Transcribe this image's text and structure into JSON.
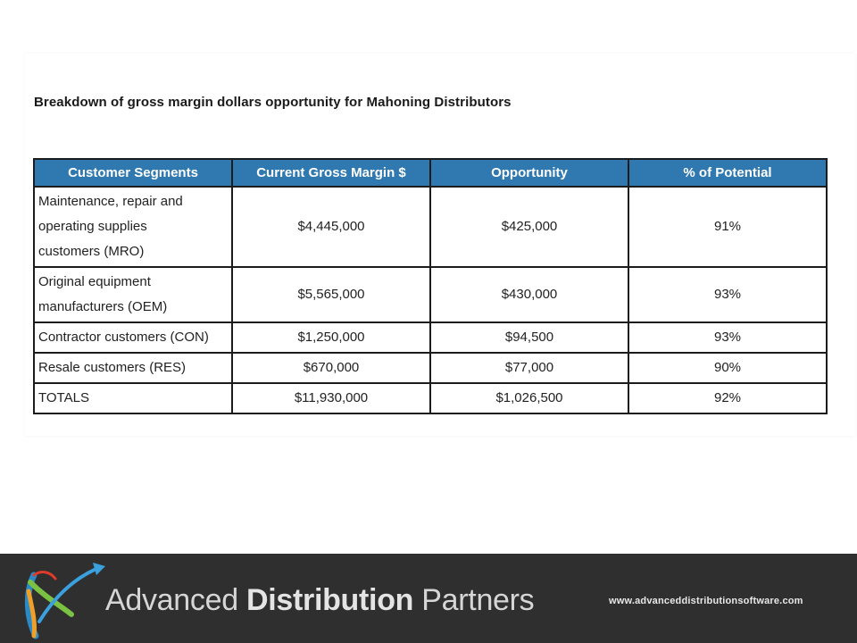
{
  "title": "Breakdown of gross margin dollars opportunity for Mahoning Distributors",
  "table": {
    "headers": [
      "Customer Segments",
      "Current Gross Margin $",
      "Opportunity",
      "% of Potential"
    ],
    "rows": [
      {
        "segment_lines": [
          "Maintenance, repair and",
          "operating supplies",
          "customers (MRO)"
        ],
        "margin": "$4,445,000",
        "opportunity": "$425,000",
        "potential": "91%"
      },
      {
        "segment_lines": [
          "Original equipment",
          "manufacturers (OEM)"
        ],
        "margin": "$5,565,000",
        "opportunity": "$430,000",
        "potential": "93%"
      },
      {
        "segment": "Contractor customers (CON)",
        "margin": "$1,250,000",
        "opportunity": "$94,500",
        "potential": "93%"
      },
      {
        "segment": "Resale customers (RES)",
        "margin": "$670,000",
        "opportunity": "$77,000",
        "potential": "90%"
      },
      {
        "segment": "TOTALS",
        "margin": "$11,930,000",
        "opportunity": "$1,026,500",
        "potential": "92%"
      }
    ]
  },
  "footer": {
    "brand_prefix": "Advanced ",
    "brand_bold": "Distribution",
    "brand_suffix": " Partners",
    "website": "www.advanceddistributionsoftware.com",
    "logo_icon": "stylized-arrow-swoosh-logo"
  },
  "colors": {
    "header_bg": "#2f79b0",
    "footer_bg": "#2f2f2f"
  }
}
